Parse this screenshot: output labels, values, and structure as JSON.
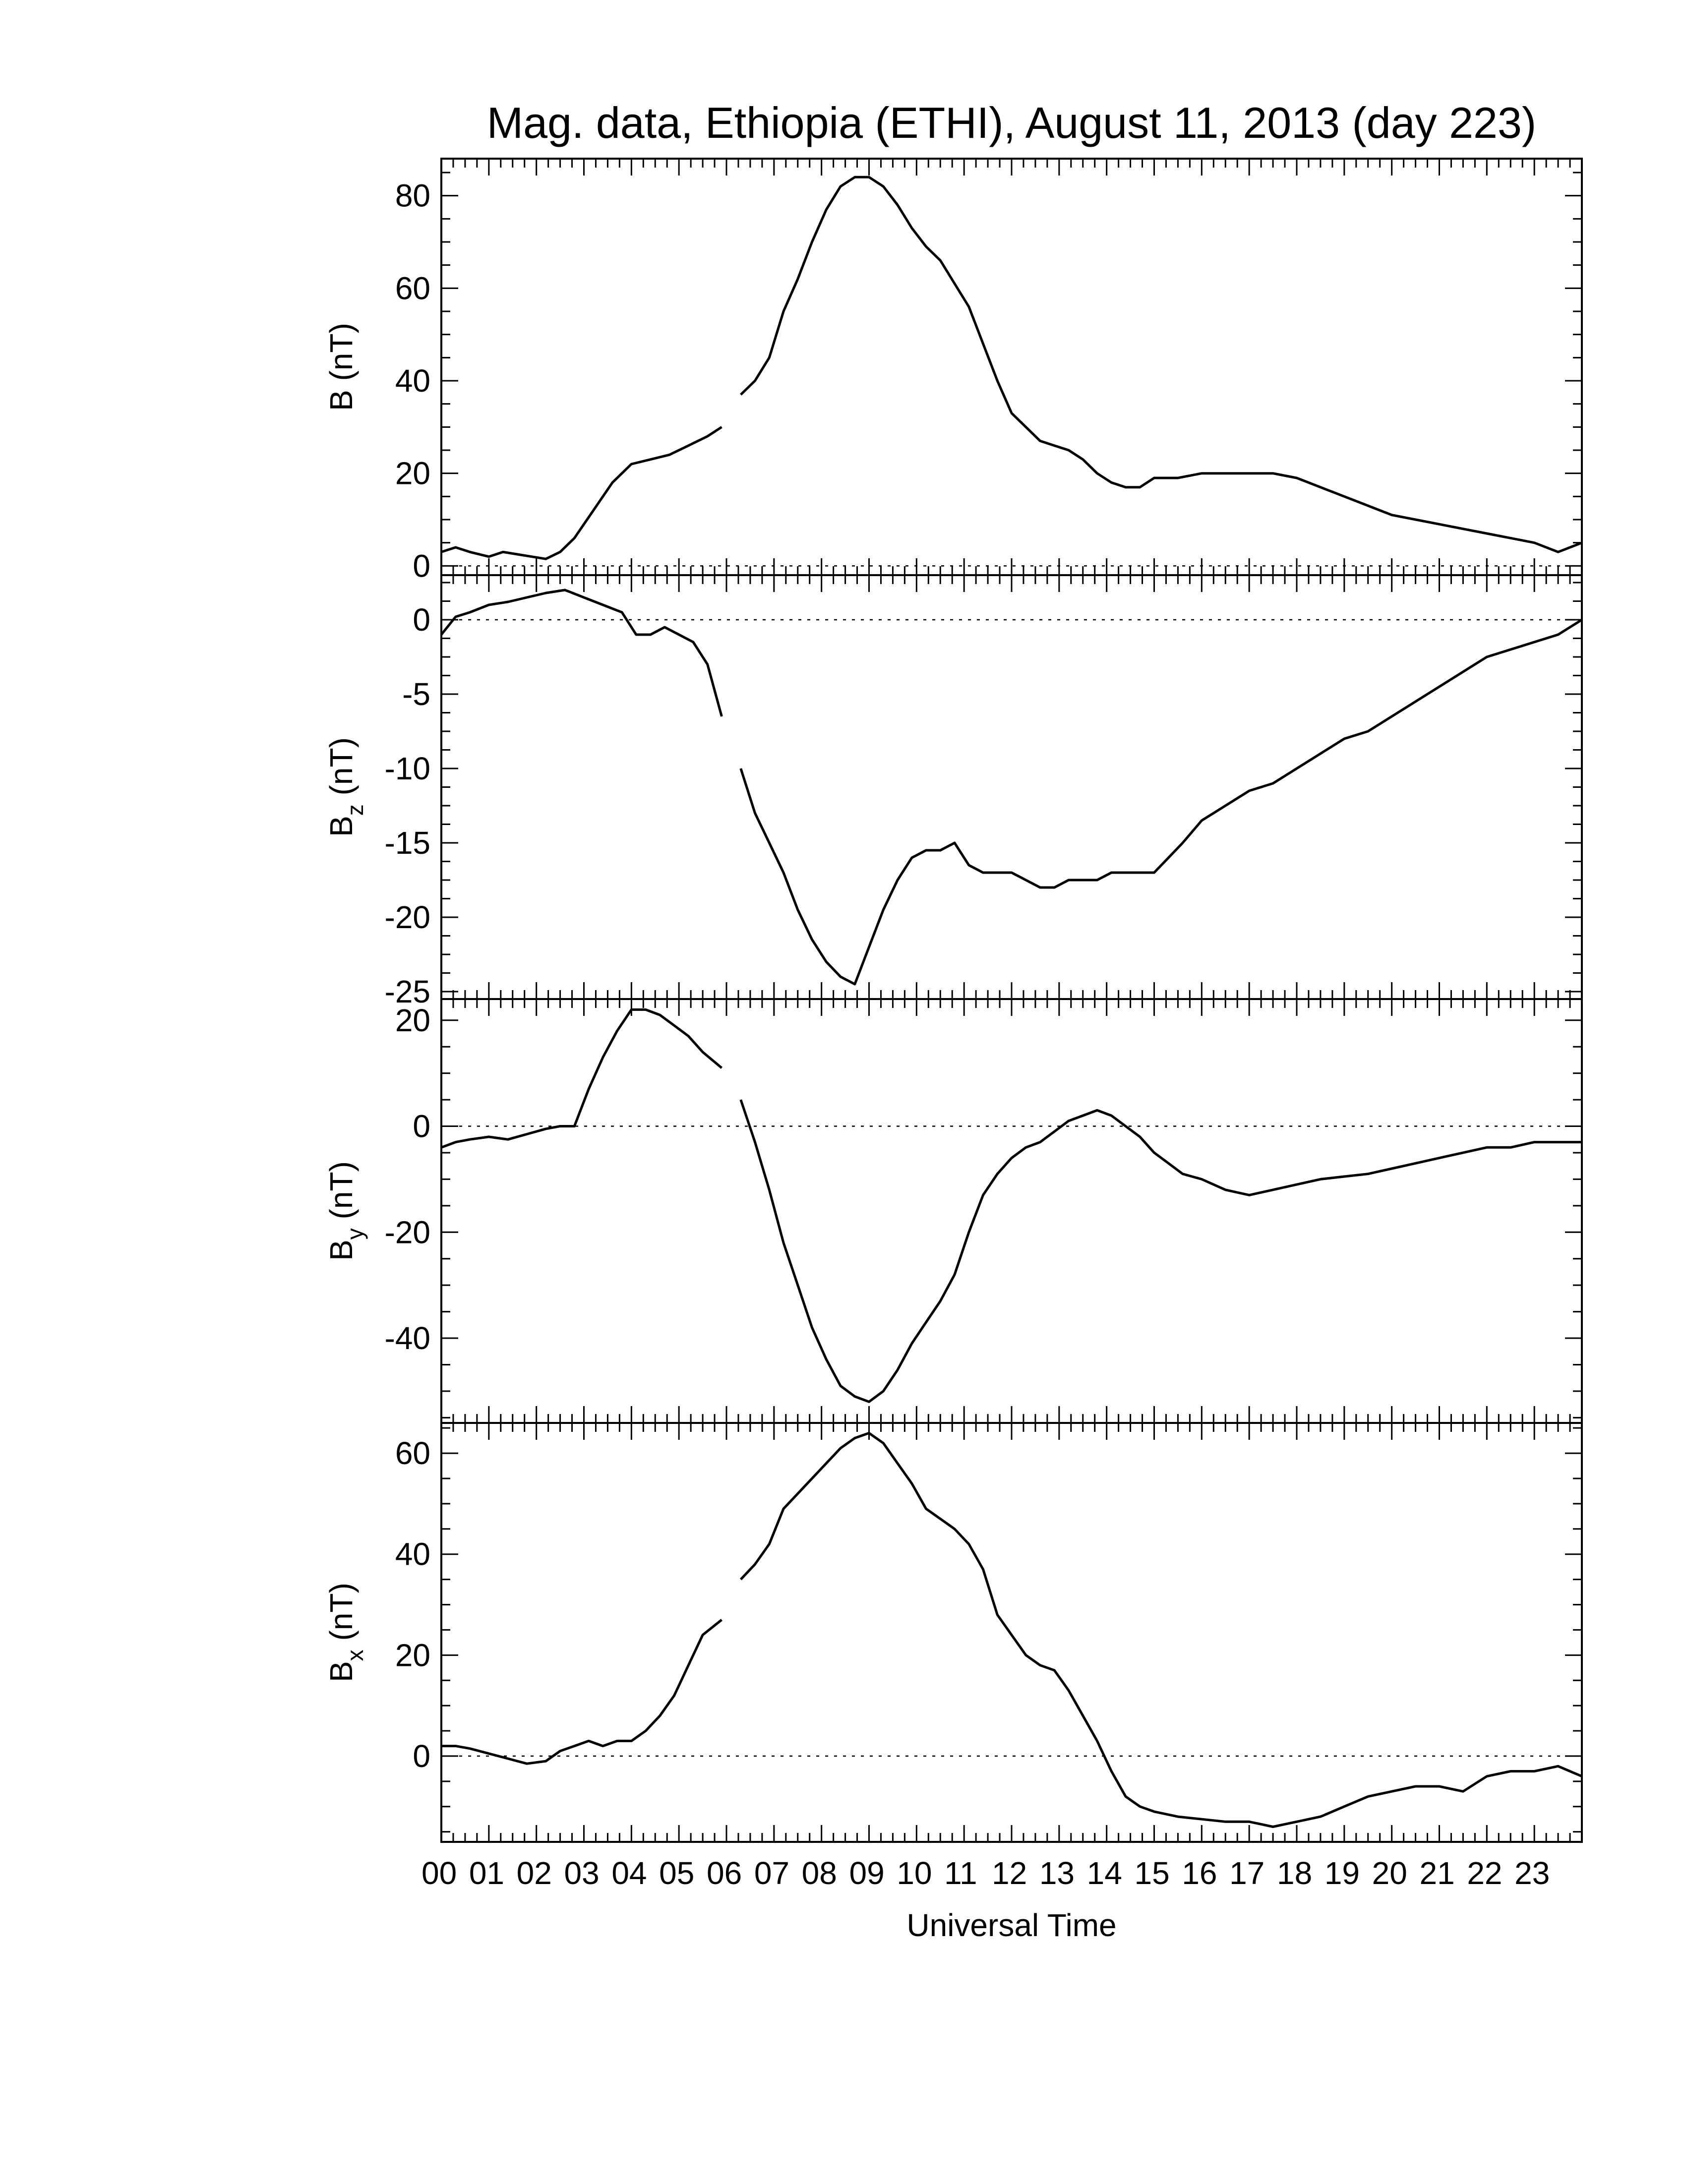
{
  "chart_data": {
    "type": "line",
    "title": "Mag. data, Ethiopia (ETHI), August 11, 2013 (day 223)",
    "xlabel": "Universal Time",
    "x_tick_labels": [
      "00",
      "01",
      "02",
      "03",
      "04",
      "05",
      "06",
      "07",
      "08",
      "09",
      "10",
      "11",
      "12",
      "13",
      "14",
      "15",
      "16",
      "17",
      "18",
      "19",
      "20",
      "21",
      "22",
      "23"
    ],
    "xlim": [
      0,
      24
    ],
    "x_unit": "hours UT",
    "data_gap": [
      5.9,
      6.3
    ],
    "panels": [
      {
        "id": "B",
        "ylabel": "B (nT)",
        "ylabel_main": "B",
        "ylabel_sub": "",
        "ylabel_unit": "(nT)",
        "ylim": [
          -2,
          88
        ],
        "yticks": [
          0,
          20,
          40,
          60,
          80
        ],
        "zero_line": true,
        "x": [
          0,
          0.3,
          0.6,
          1.0,
          1.3,
          1.6,
          1.9,
          2.2,
          2.5,
          2.8,
          3.2,
          3.6,
          4.0,
          4.4,
          4.8,
          5.2,
          5.6,
          5.9,
          6.3,
          6.6,
          6.9,
          7.2,
          7.5,
          7.8,
          8.1,
          8.4,
          8.7,
          9.0,
          9.3,
          9.6,
          9.9,
          10.2,
          10.5,
          10.8,
          11.1,
          11.4,
          11.7,
          12.0,
          12.3,
          12.6,
          12.9,
          13.2,
          13.5,
          13.8,
          14.1,
          14.4,
          14.7,
          15.0,
          15.5,
          16.0,
          16.5,
          17.0,
          17.5,
          18.0,
          18.5,
          19.0,
          19.5,
          20.0,
          20.5,
          21.0,
          21.5,
          22.0,
          22.5,
          23.0,
          23.5,
          24.0
        ],
        "y": [
          3,
          4,
          3,
          2,
          3,
          2.5,
          2,
          1.5,
          3,
          6,
          12,
          18,
          22,
          23,
          24,
          26,
          28,
          30,
          37,
          40,
          45,
          55,
          62,
          70,
          77,
          82,
          84,
          84,
          82,
          78,
          73,
          69,
          66,
          61,
          56,
          48,
          40,
          33,
          30,
          27,
          26,
          25,
          23,
          20,
          18,
          17,
          17,
          19,
          19,
          20,
          20,
          20,
          20,
          19,
          17,
          15,
          13,
          11,
          10,
          9,
          8,
          7,
          6,
          5,
          3,
          5
        ]
      },
      {
        "id": "Bz",
        "ylabel": "Bz (nT)",
        "ylabel_main": "B",
        "ylabel_sub": "z",
        "ylabel_unit": "(nT)",
        "ylim": [
          -25.5,
          3
        ],
        "yticks": [
          0,
          -5,
          -10,
          -15,
          -20,
          -25
        ],
        "zero_line": true,
        "x": [
          0,
          0.3,
          0.6,
          1.0,
          1.4,
          1.8,
          2.2,
          2.6,
          3.0,
          3.4,
          3.8,
          4.1,
          4.4,
          4.7,
          5.0,
          5.3,
          5.6,
          5.9,
          6.3,
          6.6,
          6.9,
          7.2,
          7.5,
          7.8,
          8.1,
          8.4,
          8.7,
          9.0,
          9.3,
          9.6,
          9.9,
          10.2,
          10.5,
          10.8,
          11.1,
          11.4,
          11.7,
          12.0,
          12.3,
          12.6,
          12.9,
          13.2,
          13.5,
          13.8,
          14.1,
          14.4,
          14.7,
          15.0,
          15.3,
          15.6,
          16.0,
          16.5,
          17.0,
          17.5,
          18.0,
          18.5,
          19.0,
          19.5,
          20.0,
          20.5,
          21.0,
          21.5,
          22.0,
          22.5,
          23.0,
          23.5,
          24.0
        ],
        "y": [
          -1,
          0.2,
          0.5,
          1,
          1.2,
          1.5,
          1.8,
          2,
          1.5,
          1,
          0.5,
          -1,
          -1,
          -0.5,
          -1,
          -1.5,
          -3,
          -6.5,
          -10,
          -13,
          -15,
          -17,
          -19.5,
          -21.5,
          -23,
          -24,
          -24.5,
          -22,
          -19.5,
          -17.5,
          -16,
          -15.5,
          -15.5,
          -15,
          -16.5,
          -17,
          -17,
          -17,
          -17.5,
          -18,
          -18,
          -17.5,
          -17.5,
          -17.5,
          -17,
          -17,
          -17,
          -17,
          -16,
          -15,
          -13.5,
          -12.5,
          -11.5,
          -11,
          -10,
          -9,
          -8,
          -7.5,
          -6.5,
          -5.5,
          -4.5,
          -3.5,
          -2.5,
          -2,
          -1.5,
          -1,
          0
        ]
      },
      {
        "id": "By",
        "ylabel": "By (nT)",
        "ylabel_main": "B",
        "ylabel_sub": "y",
        "ylabel_unit": "(nT)",
        "ylim": [
          -56,
          24
        ],
        "yticks": [
          20,
          0,
          -20,
          -40
        ],
        "zero_line": true,
        "x": [
          0,
          0.3,
          0.6,
          1.0,
          1.4,
          1.8,
          2.2,
          2.5,
          2.8,
          3.1,
          3.4,
          3.7,
          4.0,
          4.3,
          4.6,
          4.9,
          5.2,
          5.5,
          5.9,
          6.3,
          6.6,
          6.9,
          7.2,
          7.5,
          7.8,
          8.1,
          8.4,
          8.7,
          9.0,
          9.3,
          9.6,
          9.9,
          10.2,
          10.5,
          10.8,
          11.1,
          11.4,
          11.7,
          12.0,
          12.3,
          12.6,
          12.9,
          13.2,
          13.5,
          13.8,
          14.1,
          14.4,
          14.7,
          15.0,
          15.3,
          15.6,
          16.0,
          16.5,
          17.0,
          17.5,
          18.0,
          18.5,
          19.0,
          19.5,
          20.0,
          20.5,
          21.0,
          21.5,
          22.0,
          22.5,
          23.0,
          23.5,
          24.0
        ],
        "y": [
          -4,
          -3,
          -2.5,
          -2,
          -2.5,
          -1.5,
          -0.5,
          0,
          0,
          7,
          13,
          18,
          22,
          22,
          21,
          19,
          17,
          14,
          11,
          5,
          -3,
          -12,
          -22,
          -30,
          -38,
          -44,
          -49,
          -51,
          -52,
          -50,
          -46,
          -41,
          -37,
          -33,
          -28,
          -20,
          -13,
          -9,
          -6,
          -4,
          -3,
          -1,
          1,
          2,
          3,
          2,
          0,
          -2,
          -5,
          -7,
          -9,
          -10,
          -12,
          -13,
          -12,
          -11,
          -10,
          -9.5,
          -9,
          -8,
          -7,
          -6,
          -5,
          -4,
          -4,
          -3,
          -3,
          -3
        ]
      },
      {
        "id": "Bx",
        "ylabel": "Bx (nT)",
        "ylabel_main": "B",
        "ylabel_sub": "x",
        "ylabel_unit": "(nT)",
        "ylim": [
          -17,
          66
        ],
        "yticks": [
          60,
          40,
          20,
          0
        ],
        "zero_line": true,
        "x": [
          0,
          0.3,
          0.6,
          1.0,
          1.4,
          1.8,
          2.2,
          2.5,
          2.8,
          3.1,
          3.4,
          3.7,
          4.0,
          4.3,
          4.6,
          4.9,
          5.2,
          5.5,
          5.9,
          6.3,
          6.6,
          6.9,
          7.2,
          7.5,
          7.8,
          8.1,
          8.4,
          8.7,
          9.0,
          9.3,
          9.6,
          9.9,
          10.2,
          10.5,
          10.8,
          11.1,
          11.4,
          11.7,
          12.0,
          12.3,
          12.6,
          12.9,
          13.2,
          13.5,
          13.8,
          14.1,
          14.4,
          14.7,
          15.0,
          15.5,
          16.0,
          16.5,
          17.0,
          17.5,
          18.0,
          18.5,
          19.0,
          19.5,
          20.0,
          20.5,
          21.0,
          21.5,
          22.0,
          22.5,
          23.0,
          23.5,
          24.0
        ],
        "y": [
          2,
          2,
          1.5,
          0.5,
          -0.5,
          -1.5,
          -1,
          1,
          2,
          3,
          2,
          3,
          3,
          5,
          8,
          12,
          18,
          24,
          27,
          35,
          38,
          42,
          49,
          52,
          55,
          58,
          61,
          63,
          64,
          62,
          58,
          54,
          49,
          47,
          45,
          42,
          37,
          28,
          24,
          20,
          18,
          17,
          13,
          8,
          3,
          -3,
          -8,
          -10,
          -11,
          -12,
          -12.5,
          -13,
          -13,
          -14,
          -13,
          -12,
          -10,
          -8,
          -7,
          -6,
          -6,
          -7,
          -4,
          -3,
          -3,
          -2,
          -4
        ]
      }
    ]
  }
}
